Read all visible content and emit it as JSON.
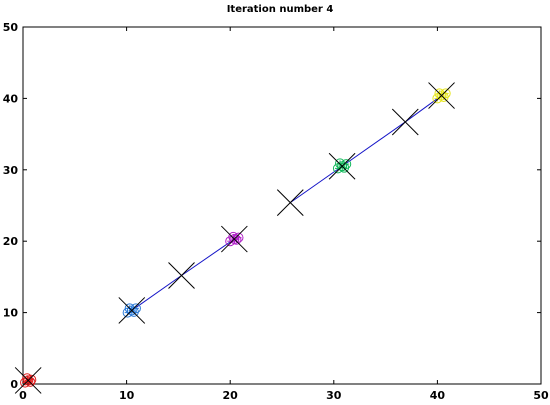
{
  "chart_data": {
    "type": "scatter",
    "title": "Iteration number 4",
    "xlabel": "",
    "ylabel": "",
    "xlim": [
      0,
      50
    ],
    "ylim": [
      0,
      50
    ],
    "xticks": [
      0,
      10,
      20,
      30,
      40,
      50
    ],
    "yticks": [
      0,
      10,
      20,
      30,
      40,
      50
    ],
    "grid": false,
    "clusters": [
      {
        "center": [
          0.5,
          0.5
        ],
        "color": "#e02020",
        "points": [
          [
            0.2,
            0.2
          ],
          [
            0.5,
            0.5
          ],
          [
            0.8,
            0.6
          ],
          [
            0.4,
            0.8
          ],
          [
            0.7,
            0.3
          ]
        ]
      },
      {
        "center": [
          10.5,
          10.3
        ],
        "color": "#2a7ad8",
        "points": [
          [
            10.1,
            10.0
          ],
          [
            10.5,
            10.3
          ],
          [
            10.9,
            10.6
          ],
          [
            10.3,
            10.6
          ],
          [
            10.7,
            10.1
          ]
        ]
      },
      {
        "center": [
          20.4,
          20.3
        ],
        "color": "#b020c8",
        "points": [
          [
            20.0,
            20.0
          ],
          [
            20.4,
            20.3
          ],
          [
            20.8,
            20.5
          ],
          [
            20.3,
            20.6
          ],
          [
            20.6,
            20.2
          ]
        ]
      },
      {
        "center": [
          30.8,
          30.5
        ],
        "color": "#12b85a",
        "points": [
          [
            30.4,
            30.2
          ],
          [
            30.8,
            30.5
          ],
          [
            31.2,
            30.8
          ],
          [
            30.6,
            30.9
          ],
          [
            31.0,
            30.3
          ]
        ]
      },
      {
        "center": [
          40.4,
          40.4
        ],
        "color": "#e6e61a",
        "points": [
          [
            40.0,
            40.0
          ],
          [
            40.4,
            40.4
          ],
          [
            40.8,
            40.7
          ],
          [
            40.2,
            40.7
          ],
          [
            40.6,
            40.2
          ]
        ]
      }
    ],
    "centroid_markers": [
      [
        0.5,
        0.5
      ],
      [
        10.5,
        10.3
      ],
      [
        15.3,
        15.2
      ],
      [
        20.4,
        20.3
      ],
      [
        25.8,
        25.4
      ],
      [
        30.8,
        30.5
      ],
      [
        36.9,
        36.7
      ],
      [
        40.4,
        40.4
      ]
    ],
    "trajectories": [
      {
        "color": "#1515c8",
        "points": [
          [
            10.5,
            10.3
          ],
          [
            15.3,
            15.2
          ],
          [
            20.4,
            20.3
          ]
        ]
      },
      {
        "color": "#1515c8",
        "points": [
          [
            25.8,
            25.4
          ],
          [
            30.8,
            30.5
          ],
          [
            36.9,
            36.7
          ],
          [
            40.4,
            40.4
          ]
        ]
      }
    ]
  }
}
